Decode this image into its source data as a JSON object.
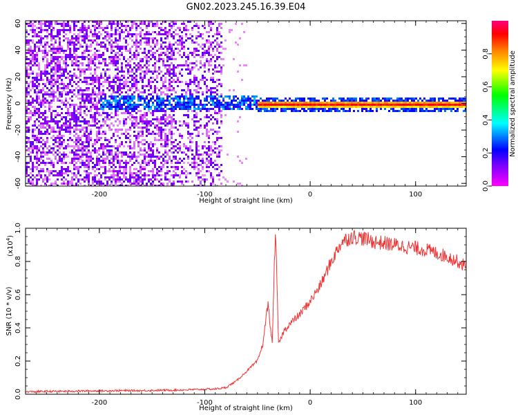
{
  "title": "GN02.2023.245.16.39.E04",
  "chart_data": [
    {
      "type": "heatmap",
      "xlabel": "Height of straight line (km)",
      "ylabel": "Frequency (Hz)",
      "xlim": [
        -270,
        148
      ],
      "ylim": [
        -62,
        62
      ],
      "x_ticks": [
        -200,
        -100,
        0,
        100
      ],
      "x_tick_labels": [
        "-200",
        "-100",
        "0",
        "100"
      ],
      "y_ticks": [
        -60,
        -40,
        -20,
        0,
        20,
        40,
        60
      ],
      "y_tick_labels": [
        "-60",
        "-40",
        "-20",
        "0",
        "20",
        "40",
        "60"
      ],
      "colorbar": {
        "label": "Normalized spectral amplitude",
        "range": [
          0,
          1
        ],
        "ticks": [
          0.0,
          0.2,
          0.4,
          0.6,
          0.8
        ],
        "tick_labels": [
          "0.0",
          "0.2",
          "0.4",
          "0.6",
          "0.8"
        ],
        "colormap": [
          "#ff00ff",
          "#8000ff",
          "#0000ff",
          "#00ffff",
          "#00ff00",
          "#ffff00",
          "#ff8000",
          "#ff0000",
          "#ff0080"
        ]
      },
      "regions": [
        {
          "description": "broadband noise",
          "x": [
            -270,
            -85
          ],
          "freq": [
            -62,
            62
          ],
          "amplitude": 0.05
        },
        {
          "description": "narrow band near 0 Hz",
          "x": [
            -200,
            -50
          ],
          "freq": [
            -4,
            6
          ],
          "amplitude": 0.25
        },
        {
          "description": "strong narrow band at 0 Hz",
          "x": [
            -50,
            148
          ],
          "freq": [
            -2,
            2
          ],
          "amplitude": 0.95
        }
      ]
    },
    {
      "type": "line",
      "xlabel": "Height of straight line (km)",
      "ylabel": "SNR (10 * v/v)",
      "y_multiplier": "(x10",
      "y_multiplier_exp": "4",
      "xlim": [
        -270,
        148
      ],
      "ylim": [
        0,
        1.0
      ],
      "x_ticks": [
        -200,
        -100,
        0,
        100
      ],
      "x_tick_labels": [
        "-200",
        "-100",
        "0",
        "100"
      ],
      "y_ticks": [
        0,
        0.2,
        0.4,
        0.6,
        0.8,
        1.0
      ],
      "y_tick_labels": [
        "0.0",
        "0.2",
        "0.4",
        "0.6",
        "0.8",
        "1.0"
      ],
      "series": [
        {
          "color": "#ee3333",
          "x": [
            -270,
            -250,
            -230,
            -210,
            -200,
            -180,
            -160,
            -140,
            -120,
            -100,
            -90,
            -80,
            -70,
            -60,
            -50,
            -45,
            -40,
            -36,
            -33,
            -30,
            -25,
            -20,
            -10,
            0,
            10,
            20,
            30,
            40,
            50,
            60,
            70,
            80,
            90,
            100,
            110,
            120,
            130,
            140,
            148
          ],
          "y": [
            0.015,
            0.017,
            0.018,
            0.02,
            0.02,
            0.022,
            0.022,
            0.024,
            0.026,
            0.03,
            0.032,
            0.04,
            0.08,
            0.14,
            0.2,
            0.3,
            0.55,
            0.3,
            1.0,
            0.3,
            0.38,
            0.42,
            0.48,
            0.56,
            0.66,
            0.8,
            0.92,
            0.95,
            0.94,
            0.92,
            0.91,
            0.9,
            0.89,
            0.88,
            0.87,
            0.85,
            0.83,
            0.8,
            0.77
          ]
        }
      ]
    }
  ]
}
